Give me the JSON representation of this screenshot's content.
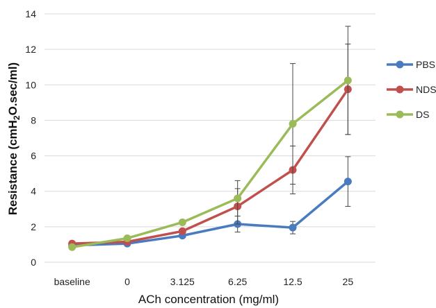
{
  "chart_data": {
    "type": "line",
    "title": "",
    "xlabel": "ACh concentration (mg/ml)",
    "ylabel_parts": {
      "main": "Resistance (cmH",
      "sub": "2",
      "rest": "O.sec/ml)"
    },
    "categories": [
      "baseline",
      "0",
      "3.125",
      "6.25",
      "12.5",
      "25"
    ],
    "yticks": [
      "0",
      "2",
      "4",
      "6",
      "8",
      "10",
      "12",
      "14"
    ],
    "ylim": [
      0,
      14
    ],
    "grid": true,
    "legend_position": "right",
    "series": [
      {
        "name": "PBS",
        "color": "#4a7bbf",
        "values": [
          0.95,
          1.05,
          1.5,
          2.15,
          1.95,
          4.55
        ],
        "errors": [
          0.1,
          0.1,
          0.1,
          0.45,
          0.35,
          1.4
        ]
      },
      {
        "name": "NDS",
        "color": "#c0504d",
        "values": [
          1.05,
          1.15,
          1.75,
          3.15,
          5.2,
          9.75
        ],
        "errors": [
          0.1,
          0.15,
          0.15,
          1.0,
          1.35,
          2.55
        ]
      },
      {
        "name": "DS",
        "color": "#9bbb59",
        "values": [
          0.85,
          1.35,
          2.25,
          3.6,
          7.8,
          10.25
        ],
        "errors": [
          0.1,
          0.1,
          0.1,
          1.0,
          3.4,
          3.05
        ]
      }
    ]
  }
}
